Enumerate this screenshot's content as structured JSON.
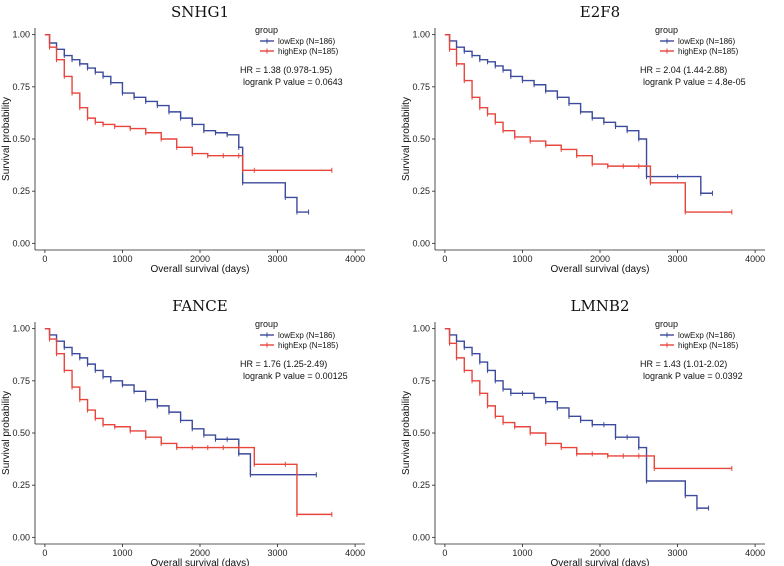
{
  "chart_data": [
    {
      "type": "line",
      "title": "SNHG1",
      "xlabel": "Overall survival (days)",
      "ylabel": "Survival probability",
      "xlim": [
        0,
        4000
      ],
      "ylim": [
        0,
        1
      ],
      "xticks": [
        "0",
        "1000",
        "2000",
        "3000",
        "4000"
      ],
      "yticks": [
        "0.00",
        "0.25",
        "0.50",
        "0.75",
        "1.00"
      ],
      "legend": {
        "title": "group",
        "entries": [
          "lowExp (N=186)",
          "highExp  (N=185)"
        ]
      },
      "annotations": [
        "HR = 1.38 (0.978-1.95)",
        "logrank P value = 0.0643"
      ],
      "series": [
        {
          "name": "lowExp",
          "color": "#3b4a9c",
          "x": [
            0,
            60,
            150,
            250,
            350,
            450,
            550,
            650,
            750,
            850,
            1000,
            1150,
            1300,
            1450,
            1600,
            1750,
            1900,
            2050,
            2200,
            2350,
            2500,
            2550,
            3100,
            3250,
            3400
          ],
          "y": [
            1.0,
            0.96,
            0.93,
            0.9,
            0.88,
            0.86,
            0.84,
            0.82,
            0.8,
            0.77,
            0.72,
            0.7,
            0.68,
            0.66,
            0.63,
            0.6,
            0.57,
            0.54,
            0.53,
            0.52,
            0.46,
            0.29,
            0.22,
            0.15,
            0.15
          ]
        },
        {
          "name": "highExp",
          "color": "#e8453c",
          "x": [
            0,
            60,
            150,
            250,
            350,
            450,
            550,
            650,
            750,
            900,
            1100,
            1300,
            1500,
            1700,
            1900,
            2100,
            2300,
            2500,
            2550,
            2700,
            3700
          ],
          "y": [
            1.0,
            0.94,
            0.88,
            0.8,
            0.72,
            0.65,
            0.6,
            0.58,
            0.57,
            0.56,
            0.55,
            0.53,
            0.5,
            0.46,
            0.43,
            0.42,
            0.42,
            0.42,
            0.35,
            0.35,
            0.35
          ]
        }
      ]
    },
    {
      "type": "line",
      "title": "E2F8",
      "xlabel": "Overall survival (days)",
      "ylabel": "Survival probability",
      "xlim": [
        0,
        4000
      ],
      "ylim": [
        0,
        1
      ],
      "xticks": [
        "0",
        "1000",
        "2000",
        "3000",
        "4000"
      ],
      "yticks": [
        "0.00",
        "0.25",
        "0.50",
        "0.75",
        "1.00"
      ],
      "legend": {
        "title": "group",
        "entries": [
          "lowExp (N=186)",
          "highExp  (N=185)"
        ]
      },
      "annotations": [
        "HR = 2.04 (1.44-2.88)",
        "logrank P value = 4.8e-05"
      ],
      "series": [
        {
          "name": "lowExp",
          "color": "#3b4a9c",
          "x": [
            0,
            60,
            150,
            250,
            350,
            450,
            550,
            650,
            750,
            850,
            1000,
            1150,
            1300,
            1450,
            1600,
            1750,
            1900,
            2050,
            2200,
            2350,
            2500,
            2600,
            3000,
            3300,
            3450
          ],
          "y": [
            1.0,
            0.97,
            0.94,
            0.92,
            0.9,
            0.88,
            0.87,
            0.85,
            0.83,
            0.8,
            0.78,
            0.76,
            0.73,
            0.7,
            0.67,
            0.63,
            0.6,
            0.58,
            0.56,
            0.54,
            0.5,
            0.32,
            0.32,
            0.24,
            0.24
          ]
        },
        {
          "name": "highExp",
          "color": "#e8453c",
          "x": [
            0,
            60,
            150,
            250,
            350,
            450,
            550,
            650,
            750,
            900,
            1100,
            1300,
            1500,
            1700,
            1900,
            2100,
            2300,
            2500,
            2650,
            3100,
            3700
          ],
          "y": [
            1.0,
            0.93,
            0.86,
            0.78,
            0.7,
            0.65,
            0.62,
            0.58,
            0.54,
            0.51,
            0.49,
            0.47,
            0.45,
            0.42,
            0.38,
            0.37,
            0.37,
            0.37,
            0.29,
            0.15,
            0.15
          ]
        }
      ]
    },
    {
      "type": "line",
      "title": "FANCE",
      "xlabel": "Overall survival (days)",
      "ylabel": "Survival probability",
      "xlim": [
        0,
        4000
      ],
      "ylim": [
        0,
        1
      ],
      "xticks": [
        "0",
        "1000",
        "2000",
        "3000",
        "4000"
      ],
      "yticks": [
        "0.00",
        "0.25",
        "0.50",
        "0.75",
        "1.00"
      ],
      "legend": {
        "title": "group",
        "entries": [
          "lowExp (N=186)",
          "highExp  (N=185)"
        ]
      },
      "annotations": [
        "HR = 1.76 (1.25-2.49)",
        "logrank P value = 0.00125"
      ],
      "series": [
        {
          "name": "lowExp",
          "color": "#3b4a9c",
          "x": [
            0,
            60,
            150,
            250,
            350,
            450,
            550,
            650,
            750,
            850,
            1000,
            1150,
            1300,
            1450,
            1600,
            1750,
            1900,
            2050,
            2200,
            2350,
            2500,
            2650,
            3500
          ],
          "y": [
            1.0,
            0.97,
            0.94,
            0.91,
            0.88,
            0.86,
            0.83,
            0.8,
            0.77,
            0.75,
            0.73,
            0.7,
            0.66,
            0.63,
            0.6,
            0.56,
            0.52,
            0.49,
            0.47,
            0.47,
            0.4,
            0.3,
            0.3
          ]
        },
        {
          "name": "highExp",
          "color": "#e8453c",
          "x": [
            0,
            60,
            150,
            250,
            350,
            450,
            550,
            650,
            750,
            900,
            1100,
            1300,
            1500,
            1700,
            1900,
            2100,
            2300,
            2500,
            2700,
            3100,
            3250,
            3700
          ],
          "y": [
            1.0,
            0.95,
            0.88,
            0.8,
            0.72,
            0.66,
            0.61,
            0.57,
            0.54,
            0.53,
            0.51,
            0.48,
            0.45,
            0.43,
            0.43,
            0.43,
            0.43,
            0.43,
            0.35,
            0.35,
            0.11,
            0.11
          ]
        }
      ]
    },
    {
      "type": "line",
      "title": "LMNB2",
      "xlabel": "Overall survival (days)",
      "ylabel": "Survival probability",
      "xlim": [
        0,
        4000
      ],
      "ylim": [
        0,
        1
      ],
      "xticks": [
        "0",
        "1000",
        "2000",
        "3000",
        "4000"
      ],
      "yticks": [
        "0.00",
        "0.25",
        "0.50",
        "0.75",
        "1.00"
      ],
      "legend": {
        "title": "group",
        "entries": [
          "lowExp (N=186)",
          "highExp  (N=185)"
        ]
      },
      "annotations": [
        "HR = 1.43 (1.01-2.02)",
        "logrank P value = 0.0392"
      ],
      "series": [
        {
          "name": "lowExp",
          "color": "#3b4a9c",
          "x": [
            0,
            60,
            150,
            250,
            350,
            450,
            550,
            650,
            750,
            850,
            1000,
            1150,
            1300,
            1450,
            1600,
            1750,
            1900,
            2050,
            2200,
            2350,
            2500,
            2600,
            3100,
            3250,
            3400
          ],
          "y": [
            1.0,
            0.97,
            0.94,
            0.91,
            0.88,
            0.84,
            0.8,
            0.75,
            0.71,
            0.69,
            0.69,
            0.67,
            0.65,
            0.62,
            0.58,
            0.56,
            0.54,
            0.54,
            0.48,
            0.48,
            0.43,
            0.27,
            0.2,
            0.14,
            0.14
          ]
        },
        {
          "name": "highExp",
          "color": "#e8453c",
          "x": [
            0,
            60,
            150,
            250,
            350,
            450,
            550,
            650,
            750,
            900,
            1100,
            1300,
            1500,
            1700,
            1900,
            2100,
            2300,
            2500,
            2700,
            3700
          ],
          "y": [
            1.0,
            0.93,
            0.86,
            0.8,
            0.75,
            0.69,
            0.63,
            0.58,
            0.55,
            0.53,
            0.5,
            0.45,
            0.43,
            0.4,
            0.4,
            0.39,
            0.39,
            0.39,
            0.33,
            0.33
          ]
        }
      ]
    }
  ]
}
